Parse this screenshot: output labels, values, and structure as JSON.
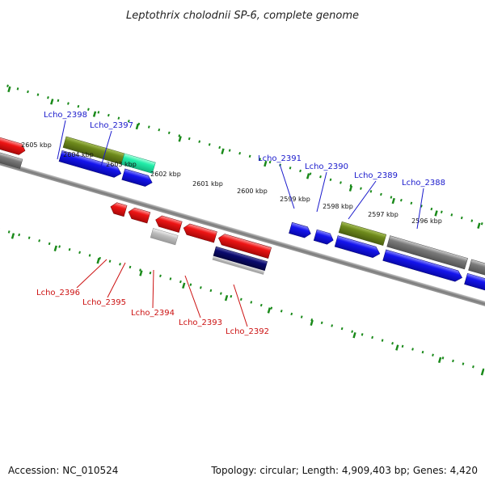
{
  "title": "Leptothrix cholodnii SP-6, complete genome",
  "footer": {
    "accession": "Accession: NC_010524",
    "summary": "Topology: circular; Length: 4,909,403 bp; Genes: 4,420"
  },
  "scale_labels": [
    "2605 kbp",
    "2604 kbp",
    "2603 kbp",
    "2602 kbp",
    "2601 kbp",
    "2600 kbp",
    "2599 kbp",
    "2598 kbp",
    "2597 kbp",
    "2596 kbp"
  ],
  "gene_labels_top": [
    "Lcho_2398",
    "Lcho_2397",
    "Lcho_2391",
    "Lcho_2390",
    "Lcho_2389",
    "Lcho_2388"
  ],
  "gene_labels_bottom": [
    "Lcho_2396",
    "Lcho_2395",
    "Lcho_2394",
    "Lcho_2393",
    "Lcho_2392"
  ],
  "colors": {
    "top_label": "#1a1acc",
    "bottom_label": "#cc1111",
    "blue_gene": "#1010ee",
    "red_gene": "#ee1111",
    "olive_gene": "#6e8a1c",
    "teal_gene": "#22eeaa",
    "gray_gene": "#7a7a7a",
    "navy_gene": "#0a0a6e",
    "scale_dots": "#1a8a1a",
    "backbone": "#7a7a7a"
  }
}
